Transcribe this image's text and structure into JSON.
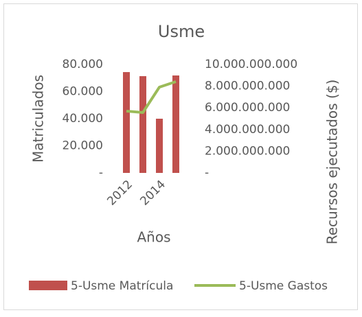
{
  "chart_data": {
    "type": "bar_line",
    "title": "Usme",
    "categories": [
      "2012",
      null,
      "2014",
      null
    ],
    "xlabel": "Años",
    "ylabel": "Matriculados",
    "y2label": "Recursos ejecutados ($)",
    "ylim": [
      0,
      80000
    ],
    "yticks": [
      {
        "value": 0,
        "label": "-"
      },
      {
        "value": 20000,
        "label": "20.000"
      },
      {
        "value": 40000,
        "label": "40.000"
      },
      {
        "value": 60000,
        "label": "60.000"
      },
      {
        "value": 80000,
        "label": "80.000"
      }
    ],
    "y2lim": [
      0,
      10000000000
    ],
    "y2ticks": [
      {
        "value": 0,
        "label": "-"
      },
      {
        "value": 2000000000,
        "label": "2.000.000.000"
      },
      {
        "value": 4000000000,
        "label": "4.000.000.000"
      },
      {
        "value": 6000000000,
        "label": "6.000.000.000"
      },
      {
        "value": 8000000000,
        "label": "8.000.000.000"
      },
      {
        "value": 10000000000,
        "label": "10.000.000.000"
      }
    ],
    "series": [
      {
        "name": "5-Usme Matrícula",
        "color": "#c0504d",
        "kind": "bar",
        "values": [
          74400,
          71400,
          40000,
          71900
        ]
      },
      {
        "name": "5-Usme Gastos",
        "color": "#9bbb59",
        "kind": "line",
        "axis": "y2",
        "values": [
          5700000000,
          5570000000,
          7910000000,
          8420000000
        ]
      }
    ]
  }
}
